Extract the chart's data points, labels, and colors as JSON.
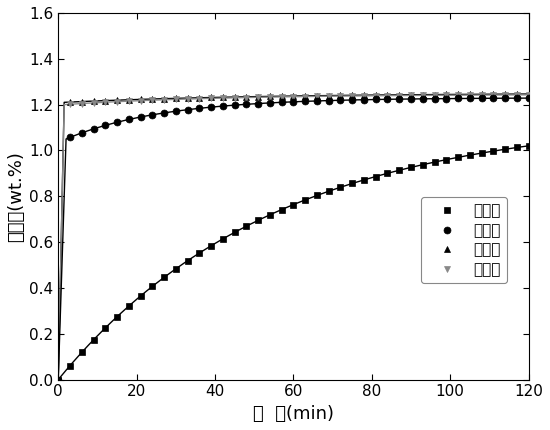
{
  "title": "",
  "xlabel": "时  间(min)",
  "ylabel": "储氢量(wt.%)",
  "xlim": [
    -2,
    120
  ],
  "ylim": [
    0.0,
    1.6
  ],
  "yticks": [
    0.0,
    0.2,
    0.4,
    0.6,
    0.8,
    1.0,
    1.2,
    1.4,
    1.6
  ],
  "xticks": [
    0,
    20,
    40,
    60,
    80,
    100,
    120
  ],
  "legend_labels": [
    "第一次",
    "第二次",
    "第三次",
    "第四次"
  ],
  "marker_size": 5,
  "linewidth": 1.0,
  "background_color": "#ffffff",
  "first_color": "#000000",
  "second_color": "#000000",
  "third_color": "#000000",
  "fourth_color": "#888888",
  "marker_interval": 3
}
